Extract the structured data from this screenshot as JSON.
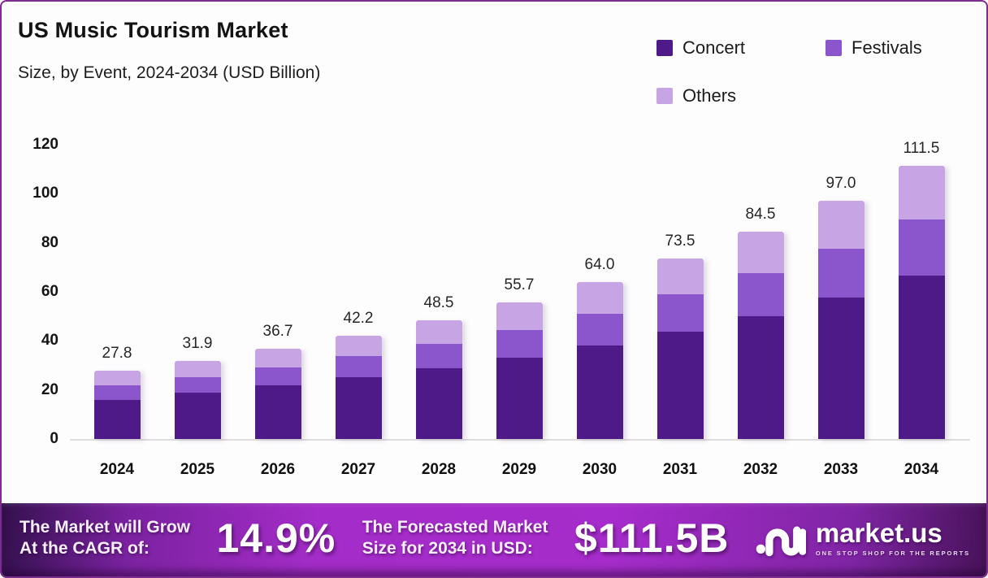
{
  "header": {
    "title": "US Music Tourism Market",
    "subtitle": "Size, by Event, 2024-2034 (USD Billion)"
  },
  "chart_data": {
    "type": "bar",
    "stacked": true,
    "title": "US Music Tourism Market",
    "subtitle": "Size, by Event, 2024-2034 (USD Billion)",
    "unit": "USD Billion",
    "categories": [
      "2024",
      "2025",
      "2026",
      "2027",
      "2028",
      "2029",
      "2030",
      "2031",
      "2032",
      "2033",
      "2034"
    ],
    "series": [
      {
        "name": "Concert",
        "color": "#4d1a87",
        "values": [
          15.9,
          18.8,
          21.8,
          25.2,
          28.9,
          33.1,
          38.2,
          43.7,
          50.1,
          57.8,
          66.7
        ]
      },
      {
        "name": "Festivals",
        "color": "#8b55cb",
        "values": [
          6.1,
          6.5,
          7.4,
          8.5,
          9.8,
          11.3,
          12.7,
          15.2,
          17.5,
          19.9,
          22.8
        ]
      },
      {
        "name": "Others",
        "color": "#c7a4e4",
        "values": [
          5.8,
          6.6,
          7.5,
          8.5,
          9.8,
          11.3,
          13.1,
          14.6,
          16.9,
          19.3,
          22.0
        ]
      }
    ],
    "totals": [
      27.8,
      31.9,
      36.7,
      42.2,
      48.5,
      55.7,
      64.0,
      73.5,
      84.5,
      97.0,
      111.5
    ],
    "total_labels": [
      "27.8",
      "31.9",
      "36.7",
      "42.2",
      "48.5",
      "55.7",
      "64.0",
      "73.5",
      "84.5",
      "97.0",
      "111.5"
    ],
    "ylim": [
      0,
      120
    ],
    "yticks": [
      0,
      20,
      40,
      60,
      80,
      100,
      120
    ],
    "grid": false,
    "legend_position": "top-right"
  },
  "footer": {
    "cagr_label_line1": "The Market will Grow",
    "cagr_label_line2": "At the CAGR of:",
    "cagr_value": "14.9%",
    "forecast_label_line1": "The Forecasted Market",
    "forecast_label_line2": "Size for 2034 in USD:",
    "forecast_value": "$111.5B",
    "brand_name": "market.us",
    "brand_tagline": "ONE STOP SHOP FOR THE REPORTS"
  },
  "colors": {
    "frame_border": "#7d2b8f",
    "background": "#fefdfe",
    "axis_line": "#dfdcdf",
    "footer_gradient_dark": "#33104d",
    "footer_gradient_bright": "#a62ccb"
  }
}
